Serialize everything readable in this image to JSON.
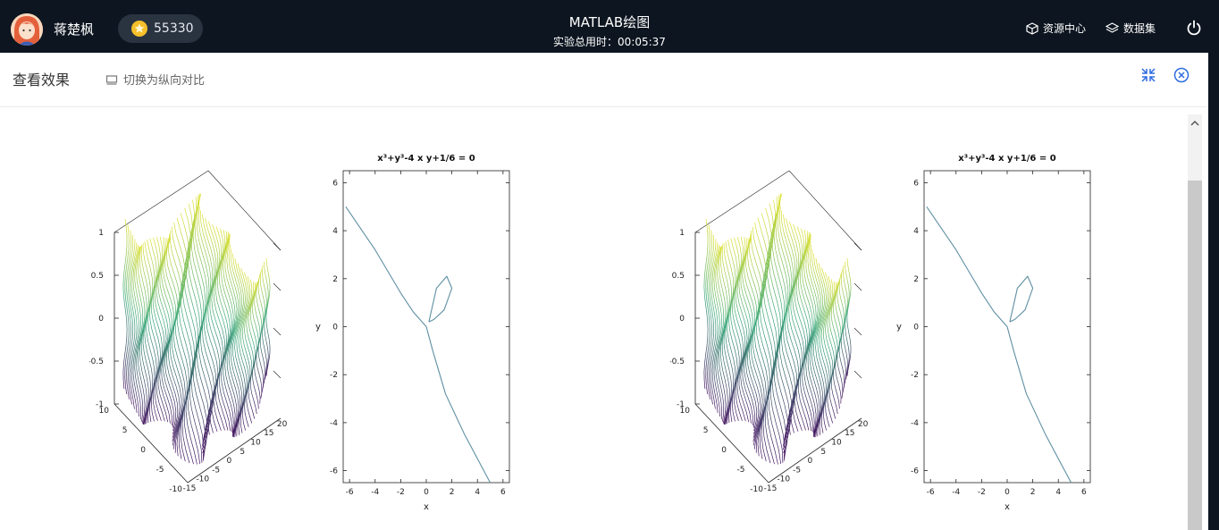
{
  "header": {
    "user_name": "蒋楚枫",
    "coins": "55330",
    "app_title": "MATLAB绘图",
    "timer_label": "实验总用时：",
    "timer_value": "00:05:37",
    "resource_center": "资源中心",
    "dataset": "数据集"
  },
  "panel": {
    "title": "查看效果",
    "switch_label": "切换为纵向对比"
  },
  "plots": {
    "surf_z_ticks": [
      "1",
      "0.5",
      "0",
      "-0.5",
      "-1"
    ],
    "surf_y_ticks": [
      "10",
      "5",
      "0",
      "-5",
      "-10"
    ],
    "surf_x_ticks": [
      "-15",
      "-10",
      "-5",
      "0",
      "5",
      "10",
      "15",
      "20"
    ],
    "implicit_title": "x³+y³-4 x y+1/6 = 0",
    "implicit_x_ticks": [
      "-6",
      "-4",
      "-2",
      "0",
      "2",
      "4",
      "6"
    ],
    "implicit_y_ticks": [
      "6",
      "4",
      "2",
      "0",
      "-2",
      "-4",
      "-6"
    ],
    "xlabel": "x",
    "ylabel": "y"
  },
  "chart_data": [
    {
      "type": "surface",
      "zlim": [
        -1,
        1
      ],
      "ylim": [
        -10,
        10
      ],
      "xlim": [
        -20,
        20
      ],
      "colormap": "viridis"
    },
    {
      "type": "line",
      "title": "x³+y³-4 x y+1/6 = 0",
      "xlabel": "x",
      "ylabel": "y",
      "xlim": [
        -6,
        6
      ],
      "ylim": [
        -6,
        6
      ],
      "series": [
        {
          "points": [
            [
              -6.3,
              5
            ],
            [
              -4,
              3.2
            ],
            [
              -2,
              1.4
            ],
            [
              -1,
              0.6
            ],
            [
              0,
              0
            ],
            [
              0.5,
              -1
            ],
            [
              1.5,
              -2.8
            ],
            [
              3,
              -4.5
            ],
            [
              5,
              -6.5
            ]
          ]
        },
        {
          "points": [
            [
              0.2,
              0.2
            ],
            [
              0.8,
              1.6
            ],
            [
              1.6,
              2.1
            ],
            [
              2,
              1.6
            ],
            [
              1.4,
              0.7
            ],
            [
              0.6,
              0.3
            ],
            [
              0.2,
              0.2
            ]
          ]
        }
      ]
    }
  ],
  "colors": {
    "topbar": "#0d1520",
    "accent": "#2d6cdf",
    "curve": "#5f8fa3"
  }
}
